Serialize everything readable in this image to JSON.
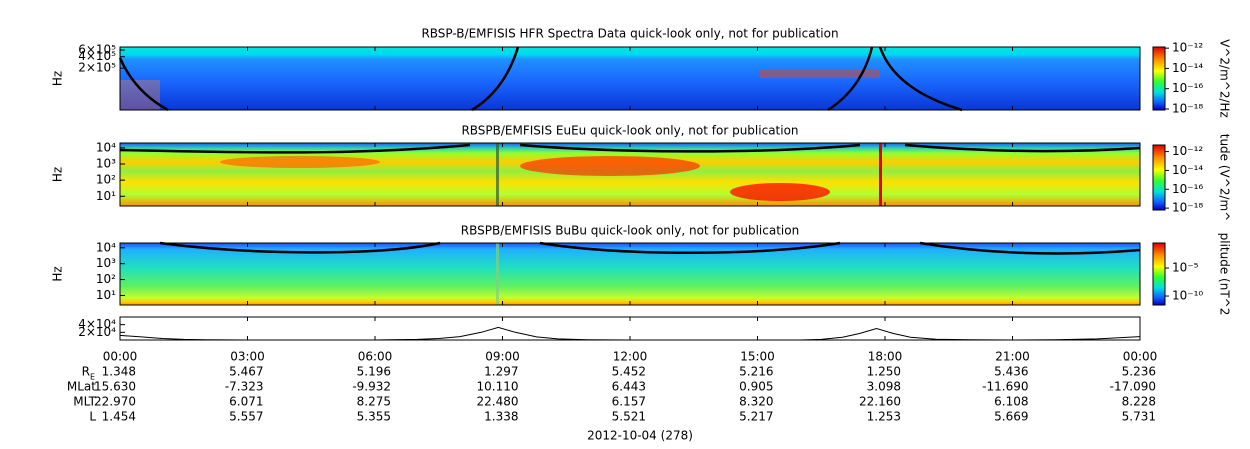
{
  "chart_data": [
    {
      "type": "spectrogram",
      "title": "RBSP-B/EMFISIS  HFR Spectra Data quick-look only, not for publication",
      "ylabel": "Hz",
      "xlim": [
        0,
        24
      ],
      "log_y": true,
      "ylim": [
        16000,
        720000
      ],
      "yticks": [
        {
          "value": 600000,
          "label": "6×10⁵"
        },
        {
          "value": 400000,
          "label": "4×10⁵"
        },
        {
          "value": 200000,
          "label": "2×10⁵"
        }
      ],
      "colorbar_label": "V^2/m^2/Hz",
      "zlim": [
        1.3e-12,
        7.9e-19
      ],
      "zticks": [
        {
          "value": 1e-12,
          "label": "10⁻¹²"
        },
        {
          "value": 1e-14,
          "label": "10⁻¹⁴"
        },
        {
          "value": 1e-16,
          "label": "10⁻¹⁶"
        },
        {
          "value": 1e-18,
          "label": "10⁻¹⁸"
        }
      ]
    },
    {
      "type": "spectrogram",
      "title": "RBSPB/EMFISIS  EuEu quick-look only, not for publication",
      "ylabel": "Hz",
      "xlim": [
        0,
        24
      ],
      "log_y": true,
      "ylim": [
        2.5,
        20000
      ],
      "yticks": [
        {
          "value": 10000,
          "label": "10⁴"
        },
        {
          "value": 1000,
          "label": "10³"
        },
        {
          "value": 100,
          "label": "10²"
        },
        {
          "value": 10,
          "label": "10¹"
        }
      ],
      "colorbar_label": "tude (V^2/m^",
      "zlim": [
        5e-12,
        6.3e-19
      ],
      "zticks": [
        {
          "value": 1e-12,
          "label": "10⁻¹²"
        },
        {
          "value": 1e-14,
          "label": "10⁻¹⁴"
        },
        {
          "value": 1e-16,
          "label": "10⁻¹⁶"
        },
        {
          "value": 1e-18,
          "label": "10⁻¹⁸"
        }
      ]
    },
    {
      "type": "spectrogram",
      "title": "RBSPB/EMFISIS  BuBu quick-look only, not for publication",
      "ylabel": "Hz",
      "xlim": [
        0,
        24
      ],
      "log_y": true,
      "ylim": [
        2.5,
        20000
      ],
      "yticks": [
        {
          "value": 10000,
          "label": "10⁴"
        },
        {
          "value": 1000,
          "label": "10³"
        },
        {
          "value": 100,
          "label": "10²"
        },
        {
          "value": 10,
          "label": "10¹"
        }
      ],
      "colorbar_label": "plitude (nT^2",
      "zlim": [
        0.3,
        2.5e-12
      ],
      "zticks": [
        {
          "value": 1e-05,
          "label": "10⁻⁵"
        },
        {
          "value": 1e-10,
          "label": "10⁻¹⁰"
        }
      ]
    },
    {
      "type": "line",
      "color": "#000000",
      "xlim": [
        0,
        24
      ],
      "ylim": [
        0,
        60000
      ],
      "yticks": [
        {
          "value": 40000,
          "label": "4×10⁴"
        },
        {
          "value": 20000,
          "label": "2×10⁴"
        }
      ],
      "x": [
        0,
        0.5,
        1,
        1.5,
        2,
        3,
        6,
        7,
        7.5,
        8,
        8.5,
        8.9,
        9.3,
        9.8,
        10.3,
        11,
        12,
        16,
        16.5,
        17,
        17.4,
        17.8,
        18.2,
        18.6,
        19.2,
        20,
        21,
        22,
        23,
        24
      ],
      "values": [
        12000,
        8000,
        4000,
        1500,
        500,
        0,
        0,
        1500,
        4000,
        9000,
        20000,
        33000,
        20000,
        8000,
        3000,
        800,
        0,
        0,
        1500,
        7000,
        17000,
        30000,
        17000,
        7000,
        2000,
        500,
        0,
        600,
        3000,
        9000
      ]
    },
    {
      "type": "time-axis",
      "xlim": [
        0,
        24
      ],
      "xlabel": "2012-10-04 (278)",
      "xticks": [
        {
          "value": 0,
          "label": "00:00"
        },
        {
          "value": 3,
          "label": "03:00"
        },
        {
          "value": 6,
          "label": "06:00"
        },
        {
          "value": 9,
          "label": "09:00"
        },
        {
          "value": 12,
          "label": "12:00"
        },
        {
          "value": 15,
          "label": "15:00"
        },
        {
          "value": 18,
          "label": "18:00"
        },
        {
          "value": 21,
          "label": "21:00"
        },
        {
          "value": 24,
          "label": "00:00"
        }
      ],
      "ephemeris": [
        {
          "label": "R",
          "sub": "E",
          "values": [
            "1.348",
            "5.467",
            "5.196",
            "1.297",
            "5.452",
            "5.216",
            "1.250",
            "5.436",
            "5.236"
          ]
        },
        {
          "label": "MLat",
          "values": [
            "15.630",
            "-7.323",
            "-9.932",
            "10.110",
            "6.443",
            "0.905",
            "3.098",
            "-11.690",
            "-17.090"
          ]
        },
        {
          "label": "MLT",
          "values": [
            "22.970",
            "6.071",
            "8.275",
            "22.480",
            "6.157",
            "8.320",
            "22.160",
            "6.108",
            "8.228"
          ]
        },
        {
          "label": "L",
          "values": [
            "1.454",
            "5.557",
            "5.355",
            "1.338",
            "5.521",
            "5.217",
            "1.253",
            "5.669",
            "5.731"
          ]
        }
      ]
    }
  ]
}
